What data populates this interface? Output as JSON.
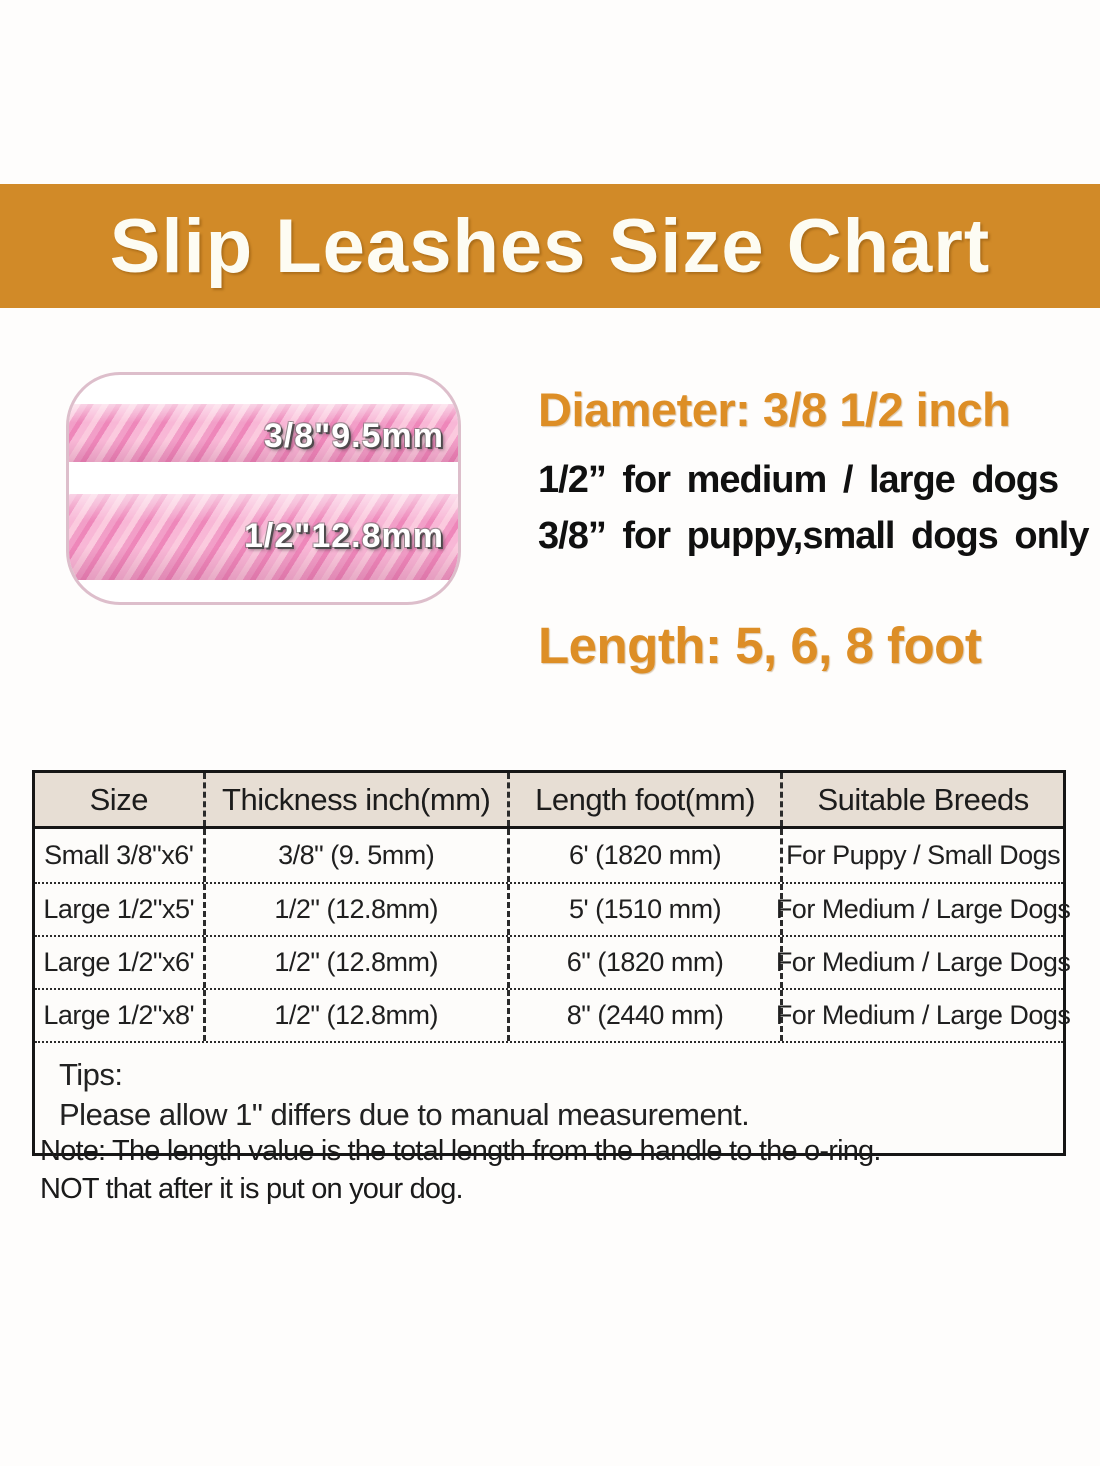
{
  "header": {
    "title": "Slip Leashes Size Chart",
    "bg_color": "#d18a28",
    "text_color": "#ffffff"
  },
  "rope_figure": {
    "thin_rope_label": "3/8\"9.5mm",
    "thick_rope_label": "1/2\"12.8mm",
    "rope_color": "#f29fc8",
    "card_border_color": "#ddbecb"
  },
  "specs": {
    "diameter_heading": "Diameter: 3/8 1/2 inch",
    "line1": "1/2” for medium / large dogs",
    "line2": "3/8” for puppy,small dogs only",
    "length_heading": "Length: 5, 6, 8 foot",
    "accent_color": "#dd8e26",
    "body_text_color": "#101010"
  },
  "size_table": {
    "headers": [
      "Size",
      "Thickness inch(mm)",
      "Length foot(mm)",
      "Suitable Breeds"
    ],
    "rows": [
      [
        "Small 3/8\"x6'",
        "3/8\" (9. 5mm)",
        "6' (1820 mm)",
        "For Puppy / Small Dogs"
      ],
      [
        "Large 1/2\"x5'",
        "1/2\" (12.8mm)",
        "5' (1510 mm)",
        "For Medium / Large Dogs"
      ],
      [
        "Large 1/2\"x6'",
        "1/2\" (12.8mm)",
        "6\" (1820 mm)",
        "For Medium / Large Dogs"
      ],
      [
        "Large 1/2\"x8'",
        "1/2\" (12.8mm)",
        "8\" (2440 mm)",
        "For Medium / Large Dogs"
      ]
    ],
    "tips_label": "Tips:",
    "tips_text": "Please allow 1\" differs due to manual measurement.",
    "header_bg_color": "#e7ded4"
  },
  "note": {
    "line1": "Note:  The length value is the total length from the handle to the o-ring.",
    "line2": "NOT that after it is put on your dog."
  }
}
